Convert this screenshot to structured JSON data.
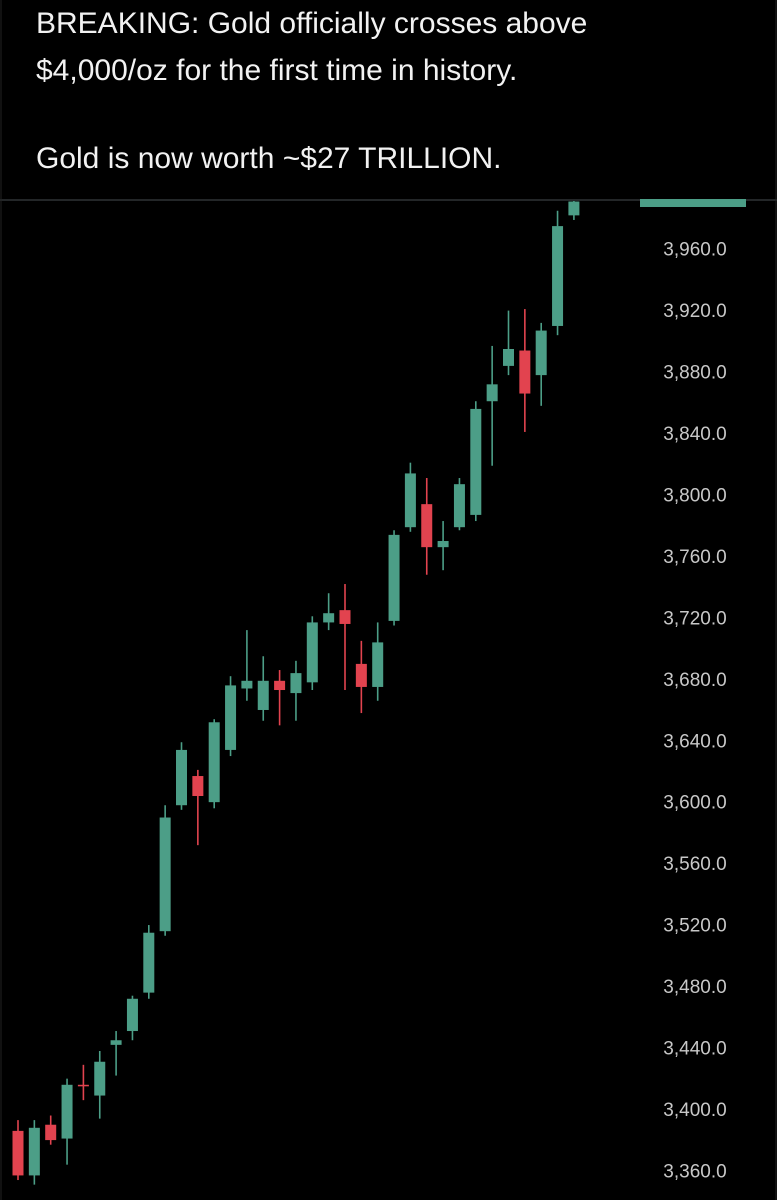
{
  "post": {
    "lines": [
      "BREAKING: Gold officially crosses above",
      "$4,000/oz for the first time in history.",
      "Gold is now worth ~$27 TRILLION."
    ]
  },
  "chart_data": {
    "type": "candlestick",
    "open": [
      3387,
      3358,
      3391,
      3382,
      3417,
      3410,
      3443,
      3452,
      3477,
      3517,
      3599,
      3618,
      3601,
      3635,
      3675,
      3661,
      3680,
      3672,
      3679,
      3718,
      3726,
      3691,
      3676,
      3719,
      3780,
      3795,
      3767,
      3780,
      3788,
      3862,
      3885,
      3895,
      3879,
      3911,
      3983
    ],
    "high": [
      3394,
      3394,
      3397,
      3421,
      3430,
      3439,
      3452,
      3475,
      3521,
      3599,
      3640,
      3622,
      3655,
      3683,
      3713,
      3696,
      3687,
      3693,
      3722,
      3737,
      3743,
      3706,
      3718,
      3778,
      3822,
      3812,
      3784,
      3812,
      3862,
      3898,
      3921,
      3922,
      3913,
      3986,
      3996
    ],
    "low": [
      3355,
      3352,
      3378,
      3365,
      3407,
      3395,
      3423,
      3446,
      3473,
      3514,
      3596,
      3573,
      3597,
      3631,
      3667,
      3654,
      3651,
      3654,
      3674,
      3713,
      3674,
      3659,
      3667,
      3716,
      3777,
      3749,
      3752,
      3778,
      3784,
      3820,
      3879,
      3842,
      3859,
      3905,
      3980
    ],
    "close": [
      3358,
      3389,
      3381,
      3417,
      3416,
      3432,
      3446,
      3473,
      3516,
      3591,
      3635,
      3605,
      3653,
      3677,
      3680,
      3680,
      3674,
      3685,
      3718,
      3724,
      3717,
      3676,
      3705,
      3775,
      3815,
      3767,
      3771,
      3808,
      3857,
      3873,
      3896,
      3867,
      3908,
      3976,
      3992
    ],
    "up_color": "#4c9e87",
    "down_color": "#e2434f",
    "ylim": [
      3342,
      3993
    ],
    "yticks": [
      {
        "value": 3360,
        "label": "3,360.0"
      },
      {
        "value": 3400,
        "label": "3,400.0"
      },
      {
        "value": 3440,
        "label": "3,440.0"
      },
      {
        "value": 3480,
        "label": "3,480.0"
      },
      {
        "value": 3520,
        "label": "3,520.0"
      },
      {
        "value": 3560,
        "label": "3,560.0"
      },
      {
        "value": 3600,
        "label": "3,600.0"
      },
      {
        "value": 3640,
        "label": "3,640.0"
      },
      {
        "value": 3680,
        "label": "3,680.0"
      },
      {
        "value": 3720,
        "label": "3,720.0"
      },
      {
        "value": 3760,
        "label": "3,760.0"
      },
      {
        "value": 3800,
        "label": "3,800.0"
      },
      {
        "value": 3840,
        "label": "3,840.0"
      },
      {
        "value": 3880,
        "label": "3,880.0"
      },
      {
        "value": 3920,
        "label": "3,920.0"
      },
      {
        "value": 3960,
        "label": "3,960.0"
      }
    ]
  }
}
